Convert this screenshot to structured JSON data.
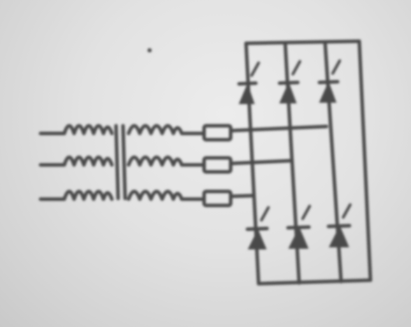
{
  "diagram": {
    "kind": "three-phase transformer with reactors feeding a six-thyristor bridge",
    "phases": 3,
    "thyristors_per_leg": 2,
    "legs": 3
  },
  "colors": {
    "paper": "#e4e4e4",
    "ink": "#4a4a4a"
  }
}
